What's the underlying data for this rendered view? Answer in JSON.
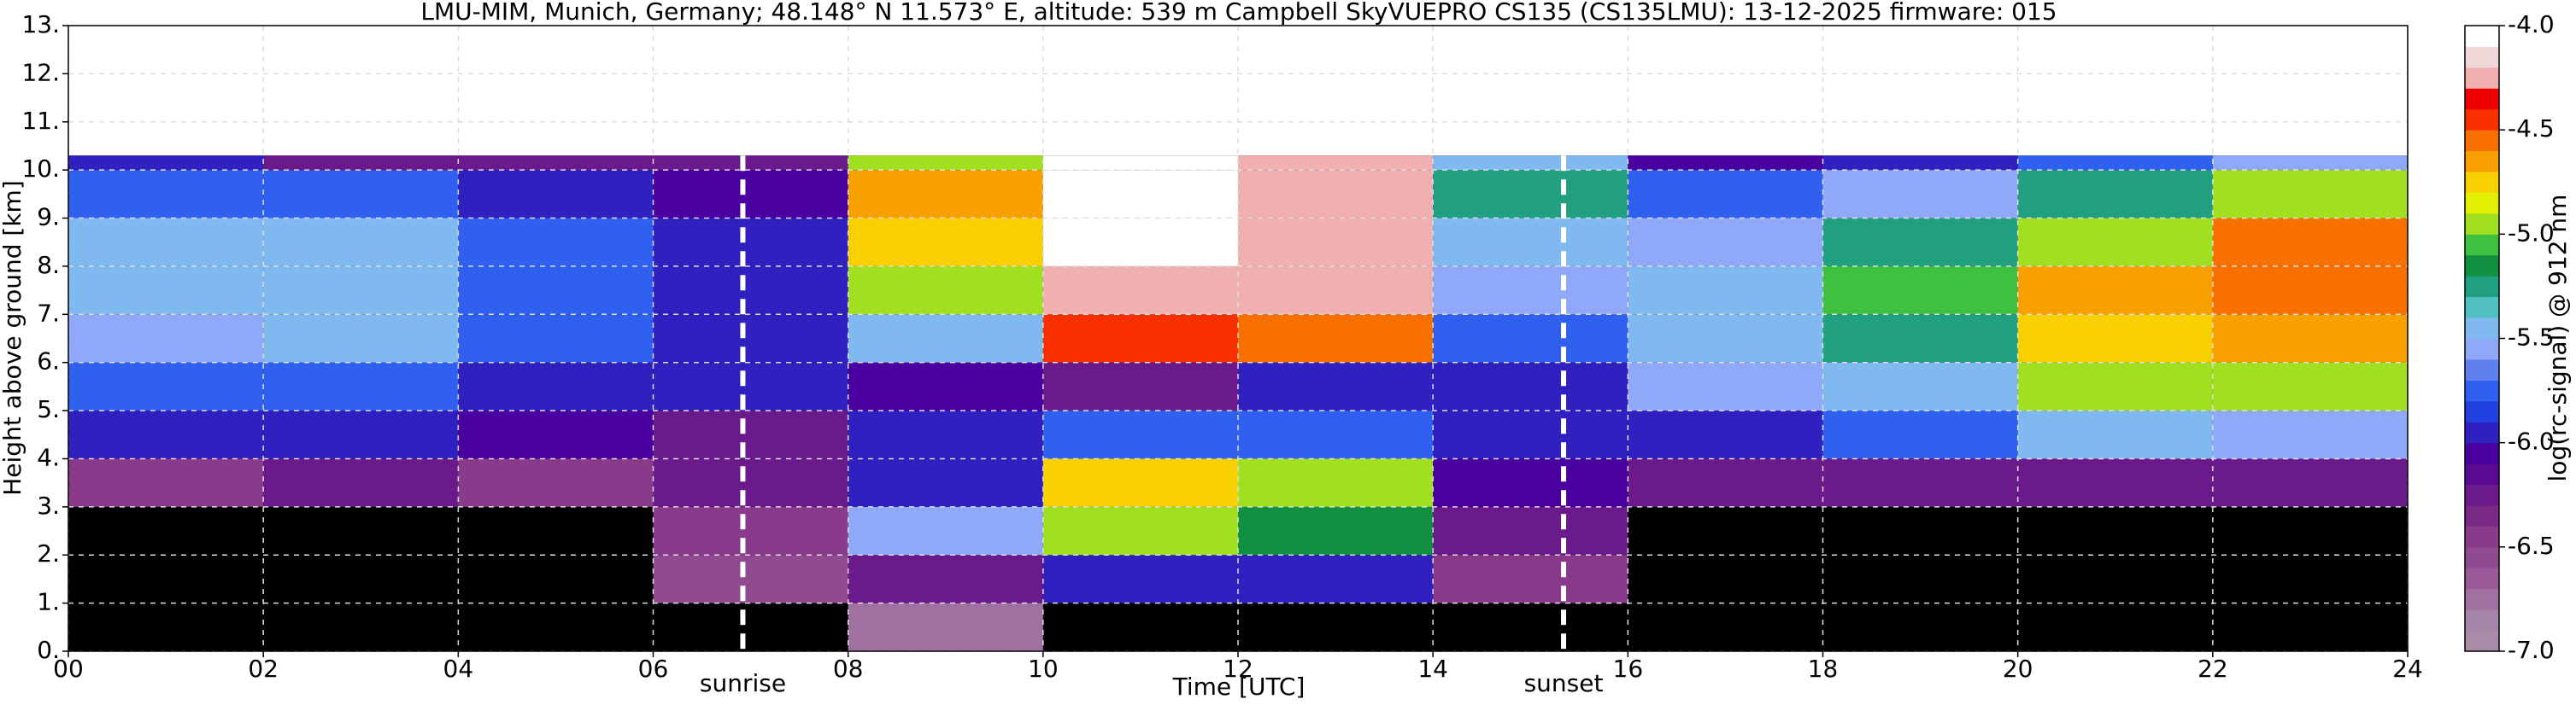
{
  "chart_data": {
    "type": "heatmap",
    "title": "LMU-MIM, Munich, Germany; 48.148° N 11.573° E, altitude: 539 m    Campbell SkyVUEPRO CS135 (CS135LMU): 13-12-2025    firmware: 015",
    "xlabel": "Time [UTC]",
    "ylabel": "Height above ground [km]",
    "xlim": [
      0,
      24
    ],
    "xticks": [
      {
        "value": 0,
        "label": "00"
      },
      {
        "value": 2,
        "label": "02"
      },
      {
        "value": 4,
        "label": "04"
      },
      {
        "value": 6,
        "label": "06"
      },
      {
        "value": 8,
        "label": "08"
      },
      {
        "value": 10,
        "label": "10"
      },
      {
        "value": 12,
        "label": "12"
      },
      {
        "value": 14,
        "label": "14"
      },
      {
        "value": 16,
        "label": "16"
      },
      {
        "value": 18,
        "label": "18"
      },
      {
        "value": 20,
        "label": "20"
      },
      {
        "value": 22,
        "label": "22"
      },
      {
        "value": 24,
        "label": "24"
      }
    ],
    "ylim": [
      0,
      13
    ],
    "yticks": [
      {
        "value": 0,
        "label": "0."
      },
      {
        "value": 1,
        "label": "1."
      },
      {
        "value": 2,
        "label": "2."
      },
      {
        "value": 3,
        "label": "3."
      },
      {
        "value": 4,
        "label": "4."
      },
      {
        "value": 5,
        "label": "5."
      },
      {
        "value": 6,
        "label": "6."
      },
      {
        "value": 7,
        "label": "7."
      },
      {
        "value": 8,
        "label": "8."
      },
      {
        "value": 9,
        "label": "9."
      },
      {
        "value": 10,
        "label": "10."
      },
      {
        "value": 11,
        "label": "11."
      },
      {
        "value": 12,
        "label": "12."
      },
      {
        "value": 13,
        "label": "13."
      }
    ],
    "grid": true,
    "x_bins": [
      0,
      2,
      4,
      6,
      8,
      10,
      12,
      14,
      16,
      18,
      20,
      22,
      24
    ],
    "y_bins": [
      0,
      1,
      2,
      3,
      4,
      5,
      6,
      7,
      8,
      9,
      10,
      10.3
    ],
    "z": [
      [
        null,
        null,
        null,
        null,
        -6.8,
        null,
        null,
        null,
        null,
        null,
        null,
        null
      ],
      [
        null,
        null,
        null,
        -6.6,
        -6.3,
        -5.9,
        -6.0,
        -6.5,
        null,
        null,
        null,
        null
      ],
      [
        null,
        null,
        null,
        -6.4,
        -5.6,
        -5.0,
        -5.2,
        -6.2,
        null,
        null,
        null,
        null
      ],
      [
        -6.4,
        -6.3,
        -6.4,
        -6.3,
        -5.9,
        -4.8,
        -4.9,
        -6.1,
        -6.3,
        -6.2,
        -6.2,
        -6.3
      ],
      [
        -6.0,
        -5.9,
        -6.1,
        -6.2,
        -6.0,
        -5.7,
        -5.8,
        -6.0,
        -6.0,
        -5.7,
        -5.5,
        -5.6
      ],
      [
        -5.8,
        -5.7,
        -5.9,
        -6.0,
        -6.1,
        -6.2,
        -6.0,
        -5.9,
        -5.6,
        -5.4,
        -5.0,
        -4.9
      ],
      [
        -5.6,
        -5.5,
        -5.8,
        -6.0,
        -5.4,
        -4.4,
        -4.6,
        -5.7,
        -5.5,
        -5.3,
        -4.8,
        -4.7
      ],
      [
        -5.5,
        -5.4,
        -5.7,
        -6.0,
        -5.0,
        -4.2,
        -4.3,
        -5.6,
        -5.4,
        -5.1,
        -4.7,
        -4.6
      ],
      [
        -5.4,
        -5.5,
        -5.8,
        -6.0,
        -4.8,
        -4.1,
        -4.2,
        -5.5,
        -5.6,
        -5.3,
        -4.9,
        -4.6
      ],
      [
        -5.7,
        -5.8,
        -6.0,
        -6.1,
        -4.7,
        -4.1,
        -4.2,
        -5.3,
        -5.8,
        -5.6,
        -5.3,
        -5.0
      ],
      [
        -6.0,
        -6.2,
        -6.3,
        -6.3,
        -4.9,
        -4.1,
        -4.3,
        -5.5,
        -6.1,
        -6.0,
        -5.8,
        -5.6
      ]
    ],
    "vlines": [
      {
        "x": 6.92,
        "label": "sunrise"
      },
      {
        "x": 15.34,
        "label": "sunset"
      }
    ],
    "colorbar": {
      "label": "log(rc-signal) @ 912 nm",
      "lim": [
        -7,
        -4
      ],
      "ticks": [
        {
          "value": -4,
          "label": "-4.0"
        },
        -4.5,
        {
          "value": -5,
          "label": "-5.0"
        },
        -5.5,
        {
          "value": -6,
          "label": "-6.0"
        },
        -6.5,
        {
          "value": -7,
          "label": "-7.0"
        }
      ],
      "colors": [
        "#a88ca8",
        "#a585a8",
        "#a070a0",
        "#9a5a9a",
        "#904a90",
        "#8a3a8a",
        "#7a2a85",
        "#6a1a8a",
        "#5a0a90",
        "#4a00a0",
        "#3020c0",
        "#2040e0",
        "#3060f0",
        "#6080f0",
        "#90a8f8",
        "#80b8f0",
        "#50c0c0",
        "#20a080",
        "#109040",
        "#40c040",
        "#a0e020",
        "#e0f000",
        "#f8d000",
        "#f8a000",
        "#f87000",
        "#f83000",
        "#f00000",
        "#f0b0b0",
        "#f0d8d8",
        "#ffffff"
      ]
    }
  }
}
